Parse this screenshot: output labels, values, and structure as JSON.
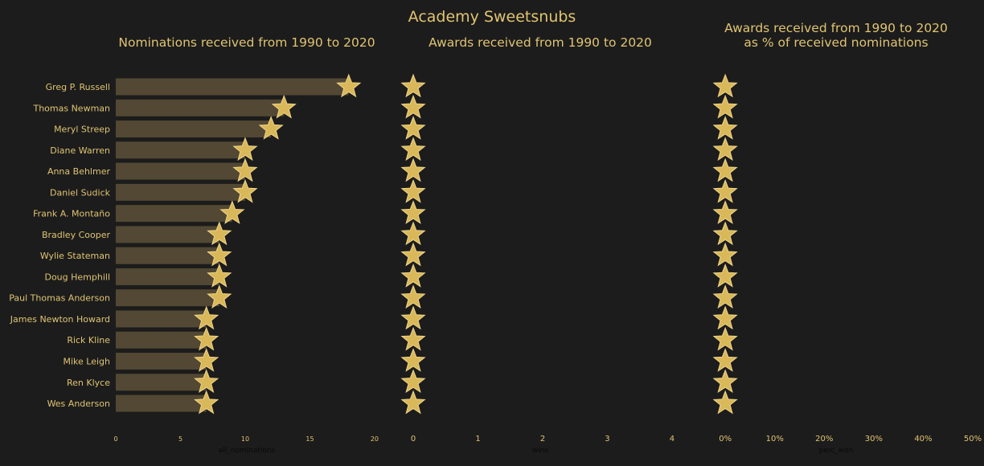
{
  "title": "Academy Sweetsnubs",
  "colors": {
    "background": "#1c1c1c",
    "text": "#e0c472",
    "bar": "#524833",
    "star": "#d9b85a",
    "star_edge": "#f0d488",
    "axis_label": "#0a0a0a"
  },
  "chart_data": [
    {
      "type": "bar",
      "orientation": "horizontal",
      "marker": "star",
      "title": "Nominations received from 1990 to 2020",
      "xlabel": "all_nominations",
      "xlim": [
        0,
        20.5
      ],
      "xticks": [
        0,
        5,
        10,
        15,
        20
      ],
      "tick_labels": [
        "0",
        "5",
        "10",
        "15",
        "20"
      ],
      "categories": [
        "Greg P. Russell",
        "Thomas Newman",
        "Meryl Streep",
        "Diane Warren",
        "Anna Behlmer",
        "Daniel Sudick",
        "Frank A. Montaño",
        "Bradley Cooper",
        "Wylie Stateman",
        "Doug Hemphill",
        "Paul Thomas Anderson",
        "James Newton Howard",
        "Rick Kline",
        "Mike Leigh",
        "Ren Klyce",
        "Wes Anderson"
      ],
      "values": [
        18,
        13,
        12,
        10,
        10,
        10,
        9,
        8,
        8,
        8,
        8,
        7,
        7,
        7,
        7,
        7
      ]
    },
    {
      "type": "scatter",
      "marker": "star",
      "title": "Awards received from 1990 to 2020",
      "xlabel": "wins",
      "xlim": [
        -0.1,
        4.1
      ],
      "xticks": [
        0,
        1,
        2,
        3,
        4
      ],
      "tick_labels": [
        "0",
        "1",
        "2",
        "3",
        "4"
      ],
      "values": [
        0,
        0,
        0,
        0,
        0,
        0,
        0,
        0,
        0,
        0,
        0,
        0,
        0,
        0,
        0,
        0
      ]
    },
    {
      "type": "scatter",
      "marker": "star",
      "title": [
        "Awards received from 1990 to 2020",
        "as % of received nominations"
      ],
      "xlabel": "perc_won",
      "xlim": [
        -1,
        50
      ],
      "xticks": [
        0,
        10,
        20,
        30,
        40,
        50
      ],
      "tick_labels": [
        "0%",
        "10%",
        "20%",
        "30%",
        "40%",
        "50%"
      ],
      "values": [
        0,
        0,
        0,
        0,
        0,
        0,
        0,
        0,
        0,
        0,
        0,
        0,
        0,
        0,
        0,
        0
      ]
    }
  ]
}
